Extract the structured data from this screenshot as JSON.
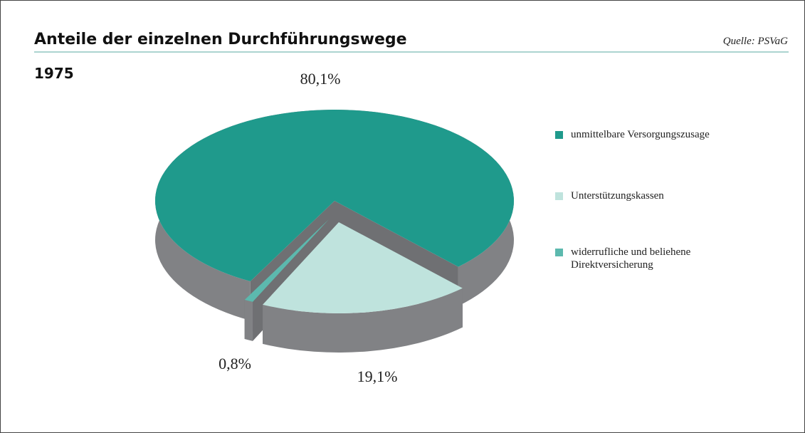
{
  "chart_data": {
    "type": "pie",
    "title": "Anteile der einzelnen Durchführungswege",
    "subtitle": "1975",
    "source": "Quelle: PSVaG",
    "categories": [
      "unmittelbare Versorgungszusage",
      "Unterstützungskassen",
      "widerrufliche und beliehene Direktversicherung"
    ],
    "values": [
      80.1,
      19.1,
      0.8
    ],
    "value_labels": [
      "80,1%",
      "19,1%",
      "0,8%"
    ],
    "colors": [
      "#1f9a8c",
      "#bfe3dd",
      "#5cb9ae"
    ]
  }
}
